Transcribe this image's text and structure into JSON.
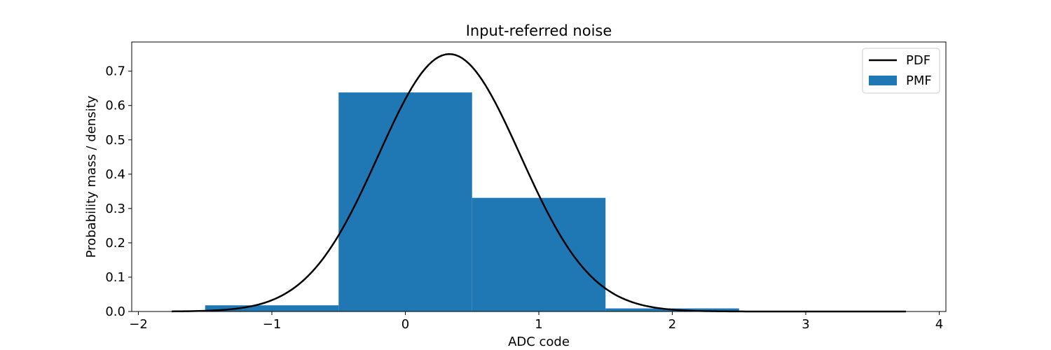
{
  "chart_data": {
    "type": "bar",
    "title": "Input-referred noise",
    "xlabel": "ADC code",
    "ylabel": "Probability mass / density",
    "xlim": [
      -2.05,
      4.05
    ],
    "ylim": [
      0.0,
      0.785
    ],
    "xticks": [
      -2,
      -1,
      0,
      1,
      2,
      3,
      4
    ],
    "xtick_labels": [
      "−2",
      "−1",
      "0",
      "1",
      "2",
      "3",
      "4"
    ],
    "yticks": [
      0.0,
      0.1,
      0.2,
      0.3,
      0.4,
      0.5,
      0.6,
      0.7
    ],
    "ytick_labels": [
      "0.0",
      "0.1",
      "0.2",
      "0.3",
      "0.4",
      "0.5",
      "0.6",
      "0.7"
    ],
    "grid": false,
    "legend_position": "top-right",
    "series": [
      {
        "name": "PMF",
        "kind": "bar",
        "color": "#1f77b4",
        "bar_width": 1.0,
        "x": [
          -1,
          0,
          1,
          2
        ],
        "values": [
          0.018,
          0.638,
          0.331,
          0.009
        ]
      },
      {
        "name": "PDF",
        "kind": "line",
        "color": "#000000",
        "distribution": "normal",
        "mean": 0.33,
        "std": 0.532,
        "x_range": [
          -1.75,
          3.75
        ]
      }
    ],
    "legend": [
      {
        "label": "PDF",
        "kind": "line",
        "color": "#000000"
      },
      {
        "label": "PMF",
        "kind": "patch",
        "color": "#1f77b4"
      }
    ]
  }
}
